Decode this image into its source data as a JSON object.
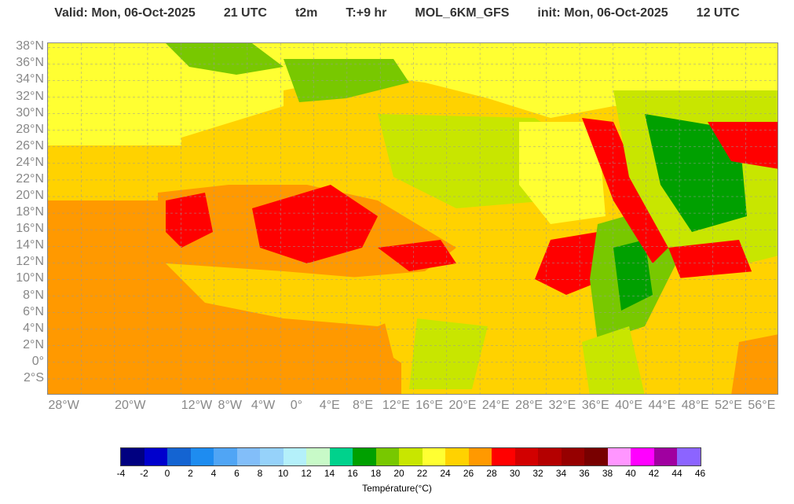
{
  "header": {
    "valid": "Valid: Mon, 06-Oct-2025",
    "hour": "21 UTC",
    "param": "t2m",
    "lead": "T:+9 hr",
    "model": "MOL_6KM_GFS",
    "init": "init: Mon, 06-Oct-2025",
    "init_hour": "12 UTC"
  },
  "map": {
    "extent": {
      "lon": [
        -30,
        58
      ],
      "lat": [
        -4,
        38.5
      ]
    },
    "lat_labels": [
      "38°N",
      "36°N",
      "34°N",
      "32°N",
      "30°N",
      "28°N",
      "26°N",
      "24°N",
      "22°N",
      "20°N",
      "18°N",
      "16°N",
      "14°N",
      "12°N",
      "10°N",
      "8°N",
      "6°N",
      "4°N",
      "2°N",
      "0°",
      "2°S"
    ],
    "lat_values": [
      38,
      36,
      34,
      32,
      30,
      28,
      26,
      24,
      22,
      20,
      18,
      16,
      14,
      12,
      10,
      8,
      6,
      4,
      2,
      0,
      -2
    ],
    "lon_labels": [
      "28°W",
      "20°W",
      "12°W",
      "8°W",
      "4°W",
      "0°",
      "4°E",
      "8°E",
      "12°E",
      "16°E",
      "20°E",
      "24°E",
      "28°E",
      "32°E",
      "36°E",
      "40°E",
      "44°E",
      "48°E",
      "52°E",
      "56°E"
    ],
    "lon_values": [
      -28,
      -20,
      -12,
      -8,
      -4,
      0,
      4,
      8,
      12,
      16,
      20,
      24,
      28,
      32,
      36,
      40,
      44,
      48,
      52,
      56
    ]
  },
  "colorbar": {
    "colors": [
      "#000080",
      "#0000cd",
      "#1464d2",
      "#1e8cf0",
      "#50a5f5",
      "#82bef9",
      "#96d2fa",
      "#b4f0fa",
      "#c8fac8",
      "#00d28c",
      "#00a000",
      "#78c800",
      "#c8e600",
      "#ffff32",
      "#ffd200",
      "#ff9900",
      "#ff0000",
      "#d20000",
      "#b40000",
      "#960000",
      "#780000",
      "#ff96ff",
      "#ff00ff",
      "#a000a0",
      "#8c64ff"
    ],
    "ticks": [
      "-4",
      "-2",
      "0",
      "2",
      "4",
      "6",
      "8",
      "10",
      "12",
      "14",
      "16",
      "18",
      "20",
      "22",
      "24",
      "26",
      "28",
      "30",
      "32",
      "34",
      "36",
      "38",
      "40",
      "42",
      "44",
      "46"
    ],
    "title": "Température(°C)"
  }
}
